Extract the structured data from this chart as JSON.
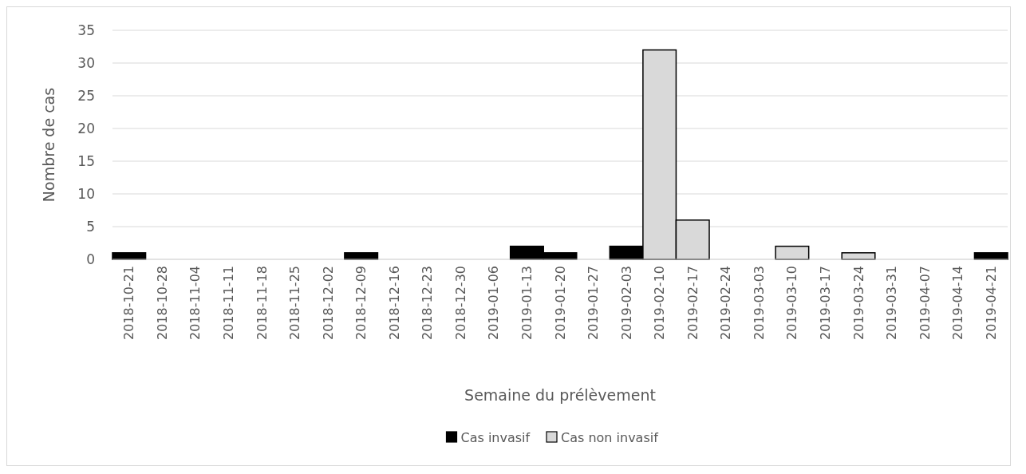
{
  "chart_data": {
    "type": "bar",
    "stacked": true,
    "xlabel": "Semaine du prélèvement",
    "ylabel": "Nombre de cas",
    "categories": [
      "2018-10-21",
      "2018-10-28",
      "2018-11-04",
      "2018-11-11",
      "2018-11-18",
      "2018-11-25",
      "2018-12-02",
      "2018-12-09",
      "2018-12-16",
      "2018-12-23",
      "2018-12-30",
      "2019-01-06",
      "2019-01-13",
      "2019-01-20",
      "2019-01-27",
      "2019-02-03",
      "2019-02-10",
      "2019-02-17",
      "2019-02-24",
      "2019-03-03",
      "2019-03-10",
      "2019-03-17",
      "2019-03-24",
      "2019-03-31",
      "2019-04-07",
      "2019-04-14",
      "2019-04-21"
    ],
    "series": [
      {
        "name": "Cas invasif",
        "color": "#000000",
        "values": [
          1,
          0,
          0,
          0,
          0,
          0,
          0,
          1,
          0,
          0,
          0,
          0,
          2,
          1,
          0,
          2,
          0,
          0,
          0,
          0,
          0,
          0,
          0,
          0,
          0,
          0,
          1
        ]
      },
      {
        "name": "Cas non invasif",
        "color": "#d9d9d9",
        "values": [
          0,
          0,
          0,
          0,
          0,
          0,
          0,
          0,
          0,
          0,
          0,
          0,
          0,
          0,
          0,
          0,
          32,
          6,
          0,
          0,
          2,
          0,
          1,
          0,
          0,
          0,
          0
        ]
      }
    ],
    "ylim": [
      0,
      35
    ],
    "yticks": [
      0,
      5,
      10,
      15,
      20,
      25,
      30,
      35
    ],
    "grid": "y",
    "legend": "bottom"
  }
}
